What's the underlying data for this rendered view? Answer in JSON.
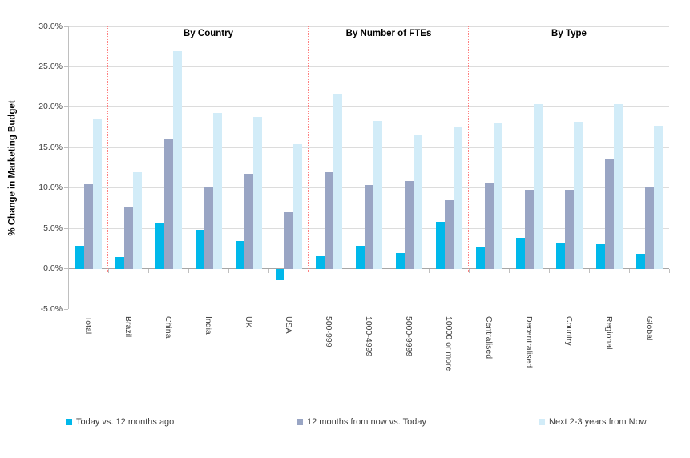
{
  "chart_data": {
    "type": "bar",
    "title": "",
    "xlabel": "",
    "ylabel": "% Change in Marketing Budget",
    "ylim": [
      -5,
      30
    ],
    "ytick_step": 5,
    "ytick_labels": [
      "30.0%",
      "25.0%",
      "20.0%",
      "15.0%",
      "10.0%",
      "5.0%",
      "0.0%",
      "-5.0%"
    ],
    "grid": true,
    "legend_position": "bottom",
    "categories": [
      "Total",
      "Brazil",
      "China",
      "India",
      "UK",
      "USA",
      "500-999",
      "1000-4999",
      "5000-9999",
      "10000 or more",
      "Centralised",
      "Decentralised",
      "Country",
      "Regional",
      "Global"
    ],
    "groups": [
      {
        "label": "By Country",
        "start_index": 1,
        "end_index": 5
      },
      {
        "label": "By Number of FTEs",
        "start_index": 6,
        "end_index": 9
      },
      {
        "label": "By Type",
        "start_index": 10,
        "end_index": 14
      }
    ],
    "series": [
      {
        "name": "Today vs. 12 months ago",
        "color": "#00b8ea",
        "values": [
          2.8,
          1.4,
          5.7,
          4.8,
          3.4,
          -1.4,
          1.5,
          2.8,
          1.9,
          5.8,
          2.6,
          3.8,
          3.1,
          3.0,
          1.8
        ]
      },
      {
        "name": "12 months from now vs. Today",
        "color": "#99a5c4",
        "values": [
          10.5,
          7.7,
          16.1,
          10.1,
          11.8,
          7.0,
          12.0,
          10.4,
          10.9,
          8.5,
          10.7,
          9.8,
          9.8,
          13.5,
          10.1
        ]
      },
      {
        "name": "Next 2-3 years from Now",
        "color": "#d2ecf8",
        "values": [
          18.5,
          12.0,
          26.9,
          19.3,
          18.8,
          15.4,
          21.7,
          18.3,
          16.5,
          17.6,
          18.1,
          20.4,
          18.2,
          20.4,
          17.7
        ]
      }
    ],
    "separator_color": "#ff8080",
    "colors": {
      "gridline": "#dcdcdc",
      "axis": "#bfbfbf",
      "zero_line": "#a6a6a6",
      "text": "#404040"
    }
  }
}
